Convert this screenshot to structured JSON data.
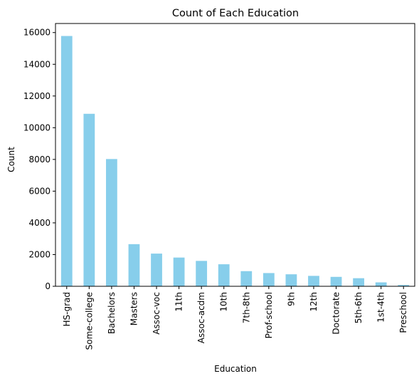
{
  "chart_data": {
    "type": "bar",
    "title": "Count of Each Education",
    "xlabel": "Education",
    "ylabel": "Count",
    "categories": [
      "HS-grad",
      "Some-college",
      "Bachelors",
      "Masters",
      "Assoc-voc",
      "11th",
      "Assoc-acdm",
      "10th",
      "7th-8th",
      "Prof-school",
      "9th",
      "12th",
      "Doctorate",
      "5th-6th",
      "1st-4th",
      "Preschool"
    ],
    "values": [
      15784,
      10878,
      8025,
      2657,
      2061,
      1812,
      1601,
      1389,
      955,
      834,
      756,
      657,
      594,
      509,
      247,
      83
    ],
    "ylim": [
      0,
      16572
    ],
    "yticks": [
      0,
      2000,
      4000,
      6000,
      8000,
      10000,
      12000,
      14000,
      16000
    ],
    "bar_color": "#87ceeb",
    "grid": false,
    "legend": "none"
  }
}
